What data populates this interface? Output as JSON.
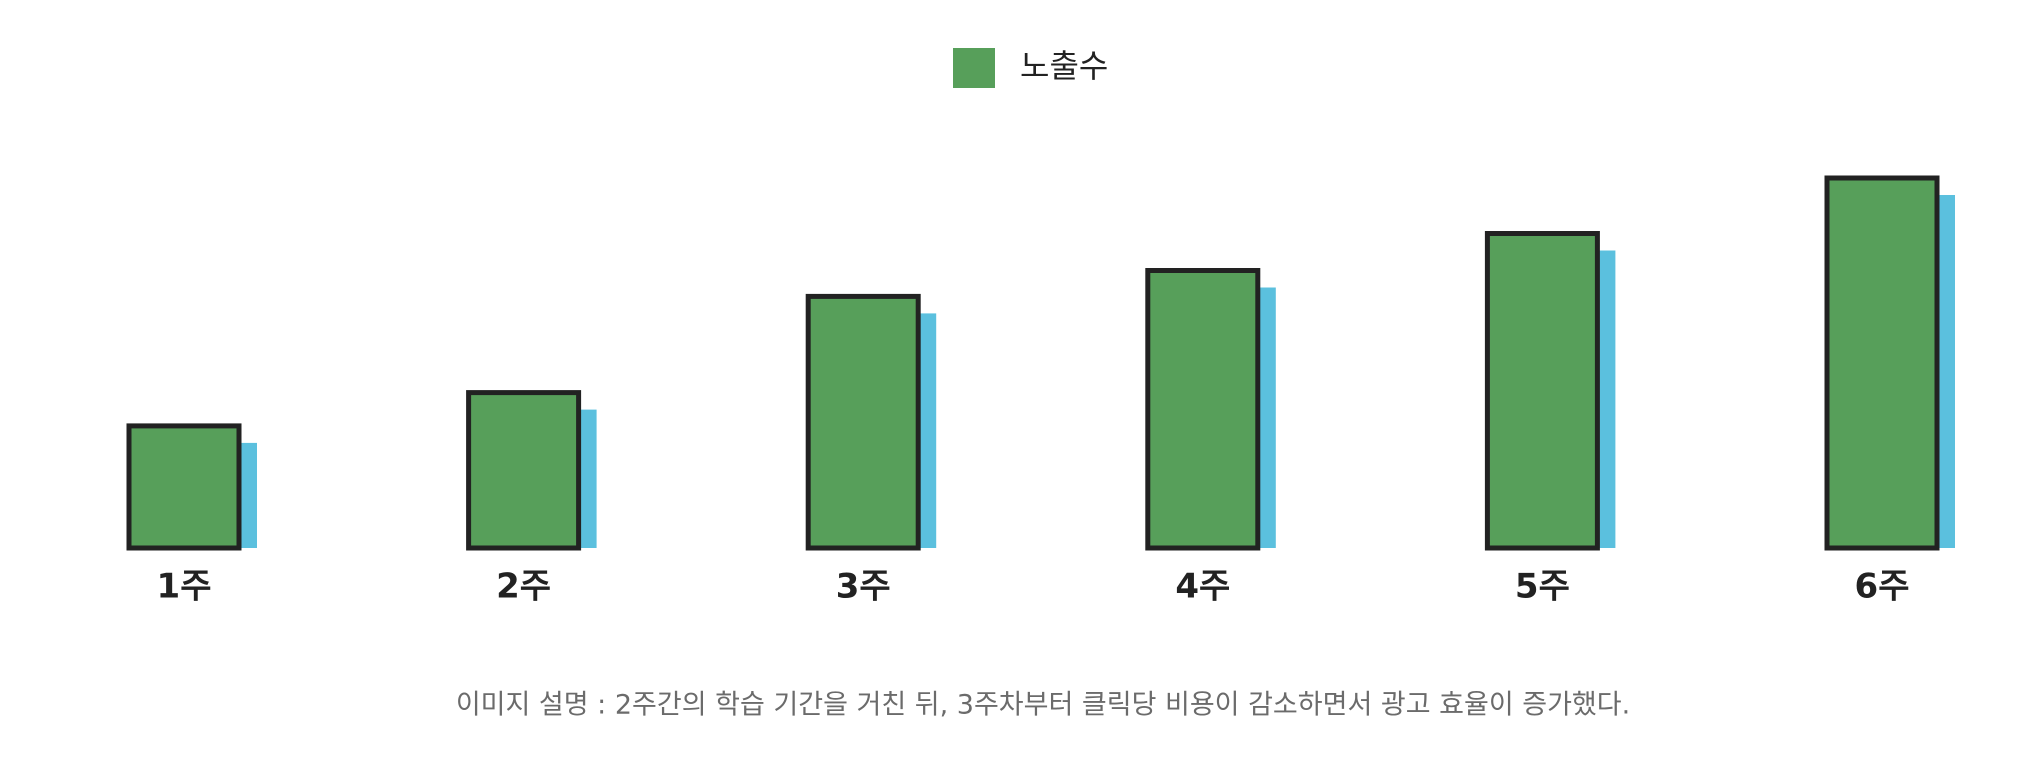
{
  "chart_data": {
    "type": "bar",
    "categories": [
      "1주",
      "2주",
      "3주",
      "4주",
      "5주",
      "6주"
    ],
    "series": [
      {
        "name": "노출수",
        "color": "#579f5a",
        "values": [
          33,
          42,
          68,
          75,
          85,
          100
        ]
      }
    ],
    "ylim": [
      0,
      100
    ],
    "legend": "top",
    "caption": "이미지 설명 : 2주간의 학습 기간을 거친 뒤, 3주차부터 클릭당 비용이 감소하면서 광고 효율이 증가했다."
  }
}
